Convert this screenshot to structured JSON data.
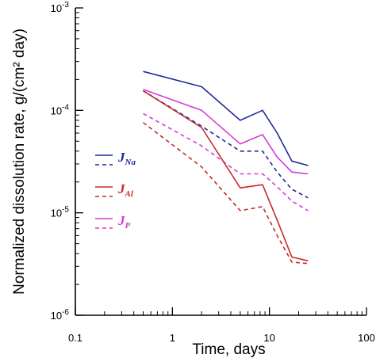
{
  "chart_data": {
    "type": "line",
    "title": "",
    "xlabel": "Time, days",
    "ylabel": "Normalized dissolution rate, g/(cm² day)",
    "xscale": "log",
    "yscale": "log",
    "xlim": [
      0.1,
      100
    ],
    "ylim": [
      1e-06,
      0.001
    ],
    "x_ticks": [
      {
        "value": 0.1,
        "label": "0.1"
      },
      {
        "value": 1,
        "label": "1"
      },
      {
        "value": 10,
        "label": "10"
      },
      {
        "value": 100,
        "label": "100"
      }
    ],
    "y_ticks": [
      {
        "value": 0.001,
        "base": "10",
        "exp": "-3"
      },
      {
        "value": 0.0001,
        "base": "10",
        "exp": "-4"
      },
      {
        "value": 1e-05,
        "base": "10",
        "exp": "-5"
      },
      {
        "value": 1e-06,
        "base": "10",
        "exp": "-6"
      }
    ],
    "grid": false,
    "legend_position": "left-center",
    "legend": [
      {
        "symbol": "J",
        "subscript": "Na",
        "color": "#1f2a9c",
        "solid": "na_solid",
        "dashed": "na_dashed"
      },
      {
        "symbol": "J",
        "subscript": "Al",
        "color": "#c42a2a",
        "solid": "al_solid",
        "dashed": "al_dashed"
      },
      {
        "symbol": "J",
        "subscript": "P",
        "color": "#d63ad6",
        "solid": "p_solid",
        "dashed": "p_dashed"
      }
    ],
    "series": [
      {
        "id": "na_solid",
        "color": "#1f2a9c",
        "dash": false,
        "x": [
          0.5,
          2,
          5,
          8.5,
          12,
          17,
          25
        ],
        "y": [
          0.00024,
          0.00017,
          8e-05,
          0.0001,
          6e-05,
          3.2e-05,
          2.9e-05
        ]
      },
      {
        "id": "na_dashed",
        "color": "#1f2a9c",
        "dash": true,
        "x": [
          0.5,
          2,
          5,
          8.5,
          12,
          17,
          25
        ],
        "y": [
          0.000155,
          7e-05,
          4e-05,
          4e-05,
          2.5e-05,
          1.7e-05,
          1.4e-05
        ]
      },
      {
        "id": "p_solid",
        "color": "#d63ad6",
        "dash": false,
        "x": [
          0.5,
          2,
          5,
          8.5,
          12,
          17,
          25
        ],
        "y": [
          0.00016,
          0.0001,
          4.7e-05,
          5.8e-05,
          3.5e-05,
          2.5e-05,
          2.4e-05
        ]
      },
      {
        "id": "p_dashed",
        "color": "#d63ad6",
        "dash": true,
        "x": [
          0.5,
          2,
          5,
          8.5,
          12,
          17,
          25
        ],
        "y": [
          9.3e-05,
          4.5e-05,
          2.4e-05,
          2.4e-05,
          1.8e-05,
          1.3e-05,
          1.05e-05
        ]
      },
      {
        "id": "al_solid",
        "color": "#c42a2a",
        "dash": false,
        "x": [
          0.5,
          2,
          5,
          8.5,
          12,
          17,
          25
        ],
        "y": [
          0.000155,
          6.8e-05,
          1.75e-05,
          1.88e-05,
          8.5e-06,
          3.7e-06,
          3.4e-06
        ]
      },
      {
        "id": "al_dashed",
        "color": "#c42a2a",
        "dash": true,
        "x": [
          0.5,
          2,
          5,
          8.5,
          12,
          17,
          25
        ],
        "y": [
          7.6e-05,
          2.8e-05,
          1.05e-05,
          1.15e-05,
          6e-06,
          3.3e-06,
          3.2e-06
        ]
      }
    ]
  }
}
